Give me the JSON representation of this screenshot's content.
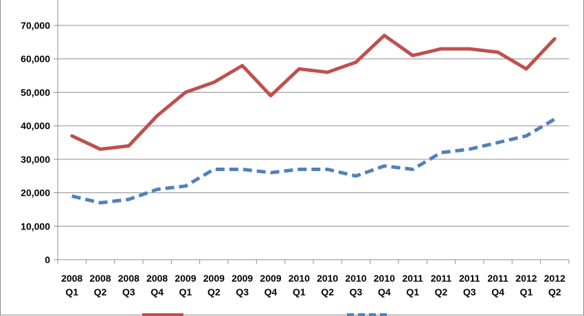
{
  "chart_data": {
    "type": "line",
    "categories": [
      [
        "2008",
        "Q1"
      ],
      [
        "2008",
        "Q2"
      ],
      [
        "2008",
        "Q3"
      ],
      [
        "2008",
        "Q4"
      ],
      [
        "2009",
        "Q1"
      ],
      [
        "2009",
        "Q2"
      ],
      [
        "2009",
        "Q3"
      ],
      [
        "2009",
        "Q4"
      ],
      [
        "2010",
        "Q1"
      ],
      [
        "2010",
        "Q2"
      ],
      [
        "2010",
        "Q3"
      ],
      [
        "2010",
        "Q4"
      ],
      [
        "2011",
        "Q1"
      ],
      [
        "2011",
        "Q2"
      ],
      [
        "2011",
        "Q3"
      ],
      [
        "2011",
        "Q4"
      ],
      [
        "2012",
        "Q1"
      ],
      [
        "2012",
        "Q2"
      ]
    ],
    "series": [
      {
        "color": "#c0504d",
        "style": "solid",
        "values": [
          37000,
          33000,
          34000,
          43000,
          50000,
          53000,
          58000,
          49000,
          57000,
          56000,
          59000,
          67000,
          61000,
          63000,
          63000,
          62000,
          57000,
          66000
        ]
      },
      {
        "color": "#4f81bd",
        "style": "dashed",
        "values": [
          19000,
          17000,
          18000,
          21000,
          22000,
          27000,
          27000,
          26000,
          27000,
          27000,
          25000,
          28000,
          27000,
          32000,
          33000,
          35000,
          37000,
          42000
        ]
      }
    ],
    "ylim": [
      0,
      70000
    ],
    "yticks": [
      "0",
      "10,000",
      "20,000",
      "30,000",
      "40,000",
      "50,000",
      "60,000",
      "70,000"
    ],
    "grid": true,
    "legend_position": "bottom"
  }
}
